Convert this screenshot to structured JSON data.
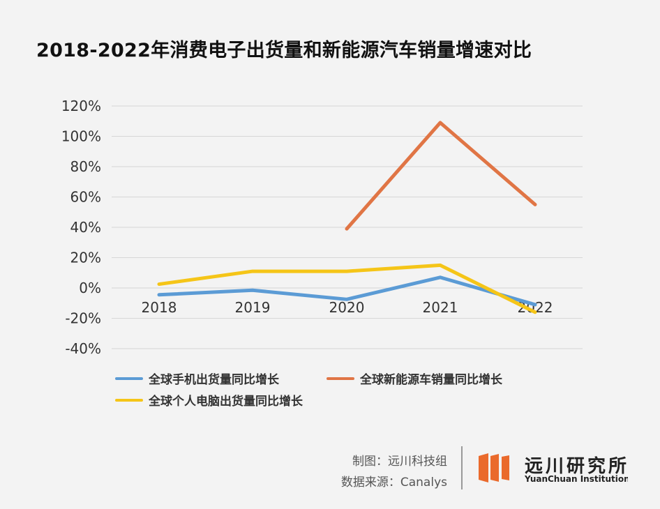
{
  "title": "2018-2022年消费电子出货量和新能源汽车销量增速对比",
  "chart_data": {
    "type": "line",
    "categories": [
      "2018",
      "2019",
      "2020",
      "2021",
      "2022"
    ],
    "y_ticks": [
      "120%",
      "100%",
      "80%",
      "60%",
      "40%",
      "20%",
      "0%",
      "-20%",
      "-40%"
    ],
    "ylim": [
      -40,
      120
    ],
    "grid": true,
    "legend_position": "bottom",
    "series": [
      {
        "name": "全球手机出货量同比增长",
        "color": "#5b9bd5",
        "values": [
          -4.5,
          -1.5,
          -7.5,
          7,
          -11
        ]
      },
      {
        "name": "全球新能源车销量同比增长",
        "color": "#e07545",
        "values": [
          null,
          null,
          39,
          109,
          55
        ]
      },
      {
        "name": "全球个人电脑出货量同比增长",
        "color": "#f5c518",
        "values": [
          2.5,
          11,
          11,
          15,
          -16
        ]
      }
    ]
  },
  "credits": {
    "made_by": "制图：远川科技组",
    "source": "数据来源：Canalys"
  },
  "brand": {
    "name_cn": "远川研究所",
    "name_en": "YuanChuan Institution",
    "color": "#ea6a2c"
  }
}
